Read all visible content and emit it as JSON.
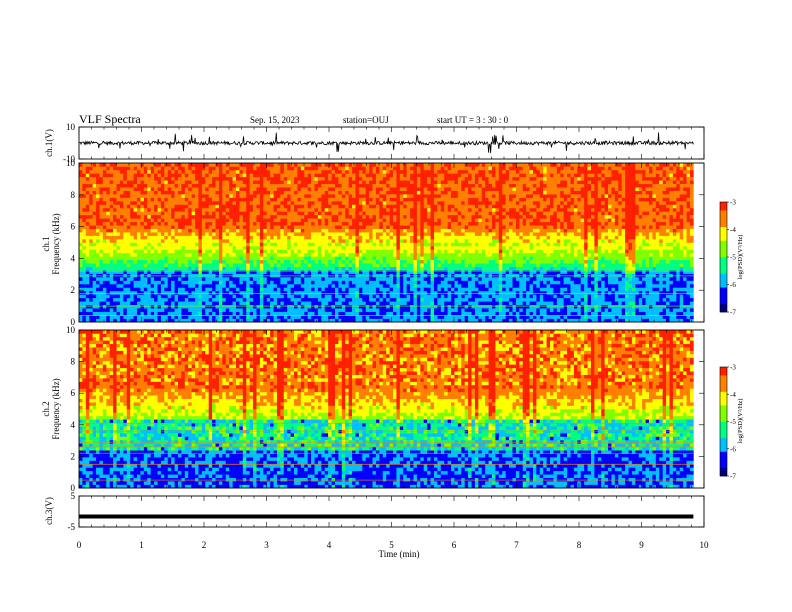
{
  "header": {
    "title": "VLF Spectra",
    "date": "Sep. 15, 2023",
    "station": "station=OUJ",
    "start": "start  UT =   3 : 30 : 0"
  },
  "chart_data": [
    {
      "type": "line",
      "ylabel": "ch.1(V)",
      "xlim": [
        0,
        10
      ],
      "ylim": [
        -10,
        10
      ],
      "y_ticks": [
        "10",
        "-10"
      ],
      "series": [
        {
          "x_range": [
            0,
            9.83
          ],
          "baseline": 0
        }
      ]
    },
    {
      "type": "heatmap",
      "ylabel_line1": "ch.1",
      "ylabel_line2": "Frequency  (kHz)",
      "xlim": [
        0,
        10
      ],
      "ylim": [
        0,
        10
      ],
      "y_ticks": [
        "0",
        "2",
        "4",
        "6",
        "8",
        "10"
      ],
      "data_x_range": [
        0,
        9.83
      ],
      "colorbar": {
        "label": "log(PSD)(V²/Hz)",
        "range": [
          -7,
          -3
        ],
        "ticks": [
          "-3",
          "-4",
          "-5",
          "-6",
          "-7"
        ]
      }
    },
    {
      "type": "heatmap",
      "ylabel_line1": "ch.2",
      "ylabel_line2": "Frequency  (kHz)",
      "xlim": [
        0,
        10
      ],
      "ylim": [
        0,
        10
      ],
      "y_ticks": [
        "0",
        "2",
        "4",
        "6",
        "8",
        "10"
      ],
      "data_x_range": [
        0,
        9.83
      ],
      "colorbar": {
        "label": "log(PSD)(V²/Hz)",
        "range": [
          -7,
          -3
        ],
        "ticks": [
          "-3",
          "-4",
          "-5",
          "-6",
          "-7"
        ]
      }
    },
    {
      "type": "line",
      "ylabel": "ch.3(V)",
      "xlim": [
        0,
        10
      ],
      "ylim": [
        -5,
        5
      ],
      "y_ticks": [
        "5",
        "-5"
      ],
      "series": [
        {
          "x_range": [
            0,
            9.83
          ],
          "values": [
            -1.6
          ]
        }
      ]
    }
  ],
  "x_axis": {
    "label": "Time  (min)",
    "ticks": [
      "0",
      "1",
      "2",
      "3",
      "4",
      "5",
      "6",
      "7",
      "8",
      "9",
      "10"
    ]
  },
  "colors": {
    "scale": [
      "#00007f",
      "#0000ff",
      "#00bfff",
      "#00ff80",
      "#80ff00",
      "#ffff00",
      "#ff8000",
      "#ff2000"
    ]
  }
}
